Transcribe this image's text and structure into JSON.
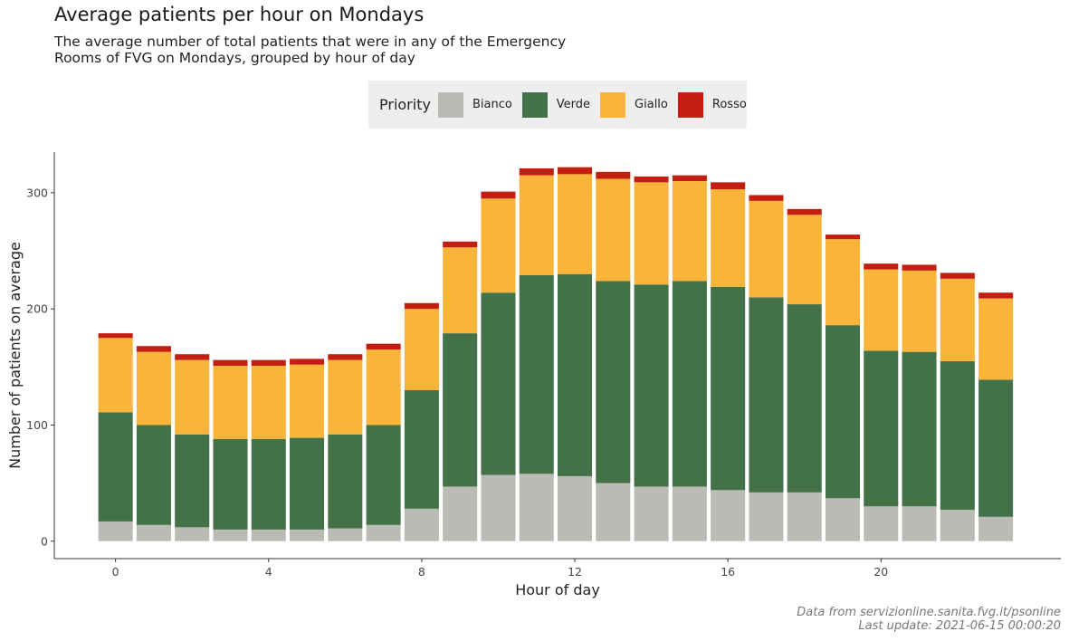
{
  "title": "Average patients per hour on Mondays",
  "subtitle": "The average number of total patients that were in any of the Emergency Rooms of FVG on Mondays, grouped by hour of day",
  "legend": {
    "title": "Priority",
    "items": [
      {
        "label": "Bianco",
        "color": "#bbbbb6"
      },
      {
        "label": "Verde",
        "color": "#437148"
      },
      {
        "label": "Giallo",
        "color": "#f9b43a"
      },
      {
        "label": "Rosso",
        "color": "#c41e12"
      }
    ]
  },
  "caption": {
    "line1": "Data from servizionline.sanita.fvg.it/psonline",
    "line2": "Last update: 2021-06-15 00:00:20"
  },
  "chart_data": {
    "type": "bar",
    "stacked": true,
    "xlabel": "Hour of day",
    "ylabel": "Number of patients on average",
    "x": [
      0,
      1,
      2,
      3,
      4,
      5,
      6,
      7,
      8,
      9,
      10,
      11,
      12,
      13,
      14,
      15,
      16,
      17,
      18,
      19,
      20,
      21,
      22,
      23
    ],
    "xticks": [
      0,
      4,
      8,
      12,
      16,
      20
    ],
    "yticks": [
      0,
      100,
      200,
      300
    ],
    "ylim": [
      -15,
      335
    ],
    "xlim": [
      -1.6,
      24.7
    ],
    "series": [
      {
        "name": "Bianco",
        "color": "#bbbbb6",
        "values": [
          17,
          14,
          12,
          10,
          10,
          10,
          11,
          14,
          28,
          47,
          57,
          58,
          56,
          50,
          47,
          47,
          44,
          42,
          42,
          37,
          30,
          30,
          27,
          21
        ]
      },
      {
        "name": "Verde",
        "color": "#437148",
        "values": [
          94,
          86,
          80,
          78,
          78,
          79,
          81,
          86,
          102,
          132,
          157,
          171,
          174,
          174,
          174,
          177,
          175,
          168,
          162,
          149,
          134,
          133,
          128,
          118
        ]
      },
      {
        "name": "Giallo",
        "color": "#f9b43a",
        "values": [
          64,
          63,
          64,
          63,
          63,
          63,
          64,
          65,
          70,
          74,
          81,
          86,
          86,
          88,
          88,
          86,
          84,
          83,
          77,
          74,
          70,
          70,
          71,
          70
        ]
      },
      {
        "name": "Rosso",
        "color": "#c41e12",
        "values": [
          4,
          5,
          5,
          5,
          5,
          5,
          5,
          5,
          5,
          5,
          6,
          6,
          6,
          6,
          5,
          5,
          6,
          5,
          5,
          4,
          5,
          5,
          5,
          5
        ]
      }
    ]
  }
}
